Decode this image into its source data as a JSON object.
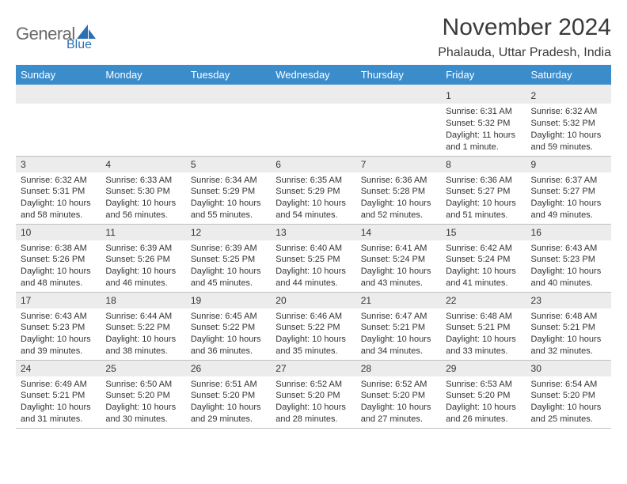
{
  "logo": {
    "text1": "General",
    "text2": "Blue",
    "shape_color": "#2d6fb3"
  },
  "header": {
    "month_title": "November 2024",
    "location": "Phalauda, Uttar Pradesh, India"
  },
  "colors": {
    "header_bg": "#3b8ccb",
    "header_fg": "#ffffff",
    "daynum_bg": "#ececec",
    "border": "#c0c0c0",
    "text": "#333333"
  },
  "weekdays": [
    "Sunday",
    "Monday",
    "Tuesday",
    "Wednesday",
    "Thursday",
    "Friday",
    "Saturday"
  ],
  "weeks": [
    [
      null,
      null,
      null,
      null,
      null,
      {
        "day": "1",
        "sunrise": "Sunrise: 6:31 AM",
        "sunset": "Sunset: 5:32 PM",
        "daylight": "Daylight: 11 hours and 1 minute."
      },
      {
        "day": "2",
        "sunrise": "Sunrise: 6:32 AM",
        "sunset": "Sunset: 5:32 PM",
        "daylight": "Daylight: 10 hours and 59 minutes."
      }
    ],
    [
      {
        "day": "3",
        "sunrise": "Sunrise: 6:32 AM",
        "sunset": "Sunset: 5:31 PM",
        "daylight": "Daylight: 10 hours and 58 minutes."
      },
      {
        "day": "4",
        "sunrise": "Sunrise: 6:33 AM",
        "sunset": "Sunset: 5:30 PM",
        "daylight": "Daylight: 10 hours and 56 minutes."
      },
      {
        "day": "5",
        "sunrise": "Sunrise: 6:34 AM",
        "sunset": "Sunset: 5:29 PM",
        "daylight": "Daylight: 10 hours and 55 minutes."
      },
      {
        "day": "6",
        "sunrise": "Sunrise: 6:35 AM",
        "sunset": "Sunset: 5:29 PM",
        "daylight": "Daylight: 10 hours and 54 minutes."
      },
      {
        "day": "7",
        "sunrise": "Sunrise: 6:36 AM",
        "sunset": "Sunset: 5:28 PM",
        "daylight": "Daylight: 10 hours and 52 minutes."
      },
      {
        "day": "8",
        "sunrise": "Sunrise: 6:36 AM",
        "sunset": "Sunset: 5:27 PM",
        "daylight": "Daylight: 10 hours and 51 minutes."
      },
      {
        "day": "9",
        "sunrise": "Sunrise: 6:37 AM",
        "sunset": "Sunset: 5:27 PM",
        "daylight": "Daylight: 10 hours and 49 minutes."
      }
    ],
    [
      {
        "day": "10",
        "sunrise": "Sunrise: 6:38 AM",
        "sunset": "Sunset: 5:26 PM",
        "daylight": "Daylight: 10 hours and 48 minutes."
      },
      {
        "day": "11",
        "sunrise": "Sunrise: 6:39 AM",
        "sunset": "Sunset: 5:26 PM",
        "daylight": "Daylight: 10 hours and 46 minutes."
      },
      {
        "day": "12",
        "sunrise": "Sunrise: 6:39 AM",
        "sunset": "Sunset: 5:25 PM",
        "daylight": "Daylight: 10 hours and 45 minutes."
      },
      {
        "day": "13",
        "sunrise": "Sunrise: 6:40 AM",
        "sunset": "Sunset: 5:25 PM",
        "daylight": "Daylight: 10 hours and 44 minutes."
      },
      {
        "day": "14",
        "sunrise": "Sunrise: 6:41 AM",
        "sunset": "Sunset: 5:24 PM",
        "daylight": "Daylight: 10 hours and 43 minutes."
      },
      {
        "day": "15",
        "sunrise": "Sunrise: 6:42 AM",
        "sunset": "Sunset: 5:24 PM",
        "daylight": "Daylight: 10 hours and 41 minutes."
      },
      {
        "day": "16",
        "sunrise": "Sunrise: 6:43 AM",
        "sunset": "Sunset: 5:23 PM",
        "daylight": "Daylight: 10 hours and 40 minutes."
      }
    ],
    [
      {
        "day": "17",
        "sunrise": "Sunrise: 6:43 AM",
        "sunset": "Sunset: 5:23 PM",
        "daylight": "Daylight: 10 hours and 39 minutes."
      },
      {
        "day": "18",
        "sunrise": "Sunrise: 6:44 AM",
        "sunset": "Sunset: 5:22 PM",
        "daylight": "Daylight: 10 hours and 38 minutes."
      },
      {
        "day": "19",
        "sunrise": "Sunrise: 6:45 AM",
        "sunset": "Sunset: 5:22 PM",
        "daylight": "Daylight: 10 hours and 36 minutes."
      },
      {
        "day": "20",
        "sunrise": "Sunrise: 6:46 AM",
        "sunset": "Sunset: 5:22 PM",
        "daylight": "Daylight: 10 hours and 35 minutes."
      },
      {
        "day": "21",
        "sunrise": "Sunrise: 6:47 AM",
        "sunset": "Sunset: 5:21 PM",
        "daylight": "Daylight: 10 hours and 34 minutes."
      },
      {
        "day": "22",
        "sunrise": "Sunrise: 6:48 AM",
        "sunset": "Sunset: 5:21 PM",
        "daylight": "Daylight: 10 hours and 33 minutes."
      },
      {
        "day": "23",
        "sunrise": "Sunrise: 6:48 AM",
        "sunset": "Sunset: 5:21 PM",
        "daylight": "Daylight: 10 hours and 32 minutes."
      }
    ],
    [
      {
        "day": "24",
        "sunrise": "Sunrise: 6:49 AM",
        "sunset": "Sunset: 5:21 PM",
        "daylight": "Daylight: 10 hours and 31 minutes."
      },
      {
        "day": "25",
        "sunrise": "Sunrise: 6:50 AM",
        "sunset": "Sunset: 5:20 PM",
        "daylight": "Daylight: 10 hours and 30 minutes."
      },
      {
        "day": "26",
        "sunrise": "Sunrise: 6:51 AM",
        "sunset": "Sunset: 5:20 PM",
        "daylight": "Daylight: 10 hours and 29 minutes."
      },
      {
        "day": "27",
        "sunrise": "Sunrise: 6:52 AM",
        "sunset": "Sunset: 5:20 PM",
        "daylight": "Daylight: 10 hours and 28 minutes."
      },
      {
        "day": "28",
        "sunrise": "Sunrise: 6:52 AM",
        "sunset": "Sunset: 5:20 PM",
        "daylight": "Daylight: 10 hours and 27 minutes."
      },
      {
        "day": "29",
        "sunrise": "Sunrise: 6:53 AM",
        "sunset": "Sunset: 5:20 PM",
        "daylight": "Daylight: 10 hours and 26 minutes."
      },
      {
        "day": "30",
        "sunrise": "Sunrise: 6:54 AM",
        "sunset": "Sunset: 5:20 PM",
        "daylight": "Daylight: 10 hours and 25 minutes."
      }
    ]
  ]
}
